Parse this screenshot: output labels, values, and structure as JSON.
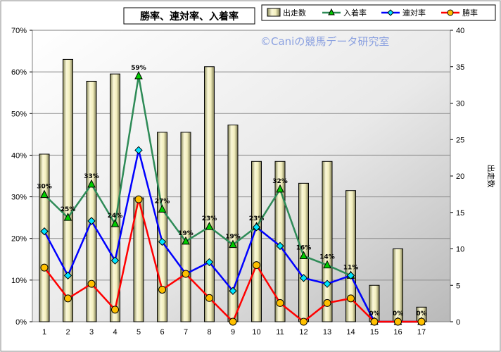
{
  "chart_data": {
    "type": "bar+line",
    "title": "勝率、連対率、入着率",
    "watermark": "©Caniの競馬データ研究室",
    "y2label": "出走数",
    "categories": [
      "1",
      "2",
      "3",
      "4",
      "5",
      "6",
      "7",
      "8",
      "9",
      "10",
      "11",
      "12",
      "13",
      "14",
      "15",
      "16",
      "17"
    ],
    "y_left_ticks": [
      "0%",
      "10%",
      "20%",
      "30%",
      "40%",
      "50%",
      "60%",
      "70%"
    ],
    "y_right_ticks": [
      "0",
      "5",
      "10",
      "15",
      "20",
      "25",
      "30",
      "35",
      "40"
    ],
    "ylim_left": [
      0,
      0.7
    ],
    "ylim_right": [
      0,
      40
    ],
    "bars": {
      "name": "出走数",
      "values": [
        23,
        36,
        33,
        34,
        17,
        26,
        26,
        35,
        27,
        22,
        22,
        19,
        22,
        18,
        5,
        10,
        2
      ],
      "color": "#f0ecb8"
    },
    "series": [
      {
        "name": "入着率",
        "color": "#2e8b57",
        "marker": "triangle",
        "marker_fill": "#00cc00",
        "values": [
          0.305,
          0.25,
          0.33,
          0.235,
          0.59,
          0.27,
          0.193,
          0.228,
          0.185,
          0.228,
          0.318,
          0.158,
          0.136,
          0.111,
          0.0,
          0.0,
          0.0
        ],
        "labels": [
          "30%",
          "25%",
          "33%",
          "24%",
          "59%",
          "27%",
          "19%",
          "23%",
          "19%",
          "23%",
          "32%",
          "16%",
          "14%",
          "11%",
          "0%",
          "0%",
          "0%"
        ]
      },
      {
        "name": "連対率",
        "color": "#0000ff",
        "marker": "diamond",
        "marker_fill": "#00e5ff",
        "values": [
          0.217,
          0.111,
          0.242,
          0.147,
          0.412,
          0.192,
          0.115,
          0.143,
          0.074,
          0.227,
          0.182,
          0.105,
          0.091,
          0.111,
          0.0,
          0.0,
          0.0
        ]
      },
      {
        "name": "勝率",
        "color": "#ff0000",
        "marker": "circle",
        "marker_fill": "#ffc000",
        "values": [
          0.13,
          0.056,
          0.091,
          0.029,
          0.294,
          0.077,
          0.115,
          0.057,
          0.0,
          0.136,
          0.045,
          0.0,
          0.045,
          0.056,
          0.0,
          0.0,
          0.0
        ]
      }
    ],
    "grid": true,
    "legend_position": "top-right"
  }
}
